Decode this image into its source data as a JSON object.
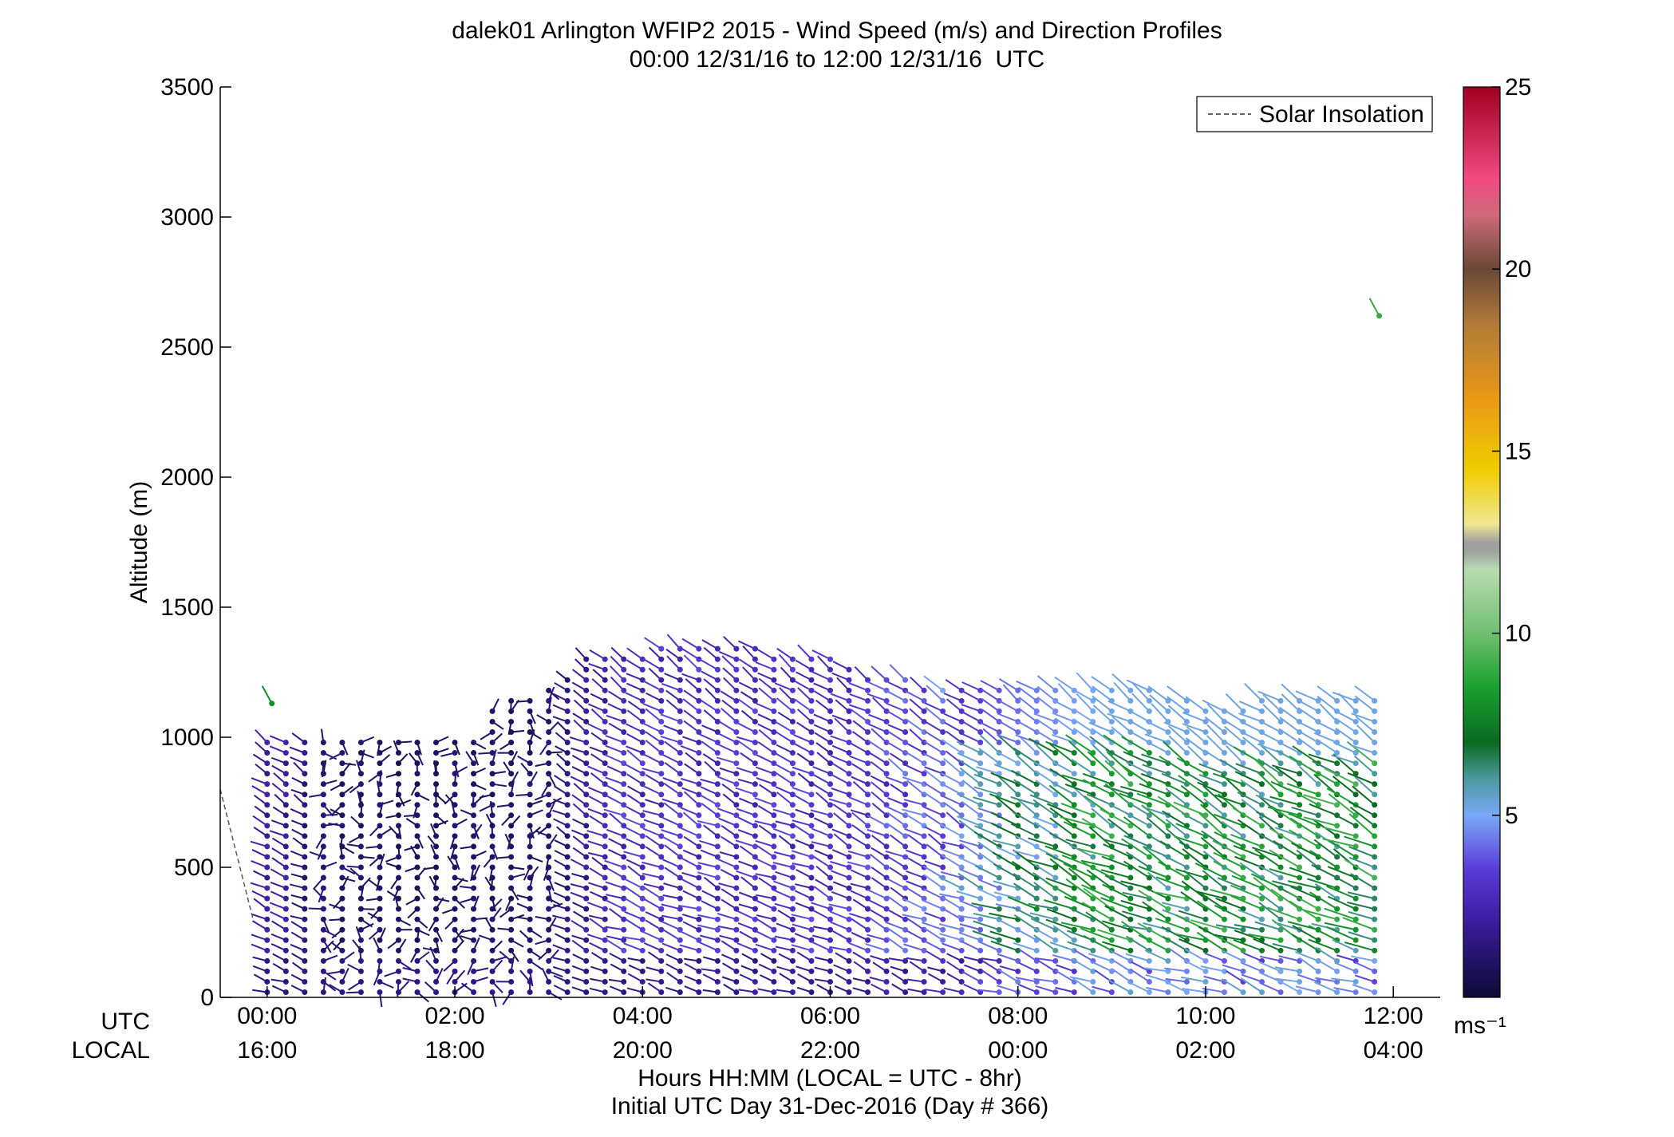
{
  "title_line1": "dalek01 Arlington WFIP2 2015 - Wind Speed (m/s) and Direction Profiles",
  "title_line2": "00:00 12/31/16 to 12:00 12/31/16  UTC",
  "legend": {
    "label": "Solar Insolation",
    "placement": "top-right"
  },
  "colorbar": {
    "min": 0,
    "max": 25,
    "ticks": [
      "5",
      "10",
      "15",
      "20",
      "25"
    ],
    "unit_label": "ms⁻¹"
  },
  "axes": {
    "ylabel": "Altitude (m)",
    "yticks": [
      "0",
      "500",
      "1000",
      "1500",
      "2000",
      "2500",
      "3000",
      "3500"
    ],
    "row_label_utc": "UTC",
    "row_label_local": "LOCAL",
    "xticks_utc": [
      "00:00",
      "02:00",
      "04:00",
      "06:00",
      "08:00",
      "10:00",
      "12:00"
    ],
    "xticks_local": [
      "16:00",
      "18:00",
      "20:00",
      "22:00",
      "00:00",
      "02:00",
      "04:00"
    ],
    "xlabel_line1": "Hours HH:MM  (LOCAL = UTC - 8hr)",
    "xlabel_line2": "Initial UTC Day 31-Dec-2016 (Day # 366)"
  },
  "chart_data": {
    "type": "scatter",
    "title": "dalek01 Arlington WFIP2 2015 - Wind Speed (m/s) and Direction Profiles",
    "subtitle": "00:00 12/31/16 to 12:00 12/31/16  UTC",
    "xlabel": "Hours HH:MM  (LOCAL = UTC - 8hr)",
    "ylabel": "Altitude (m)",
    "xlim": [
      -0.5,
      12.5
    ],
    "ylim": [
      0,
      3500
    ],
    "grid": false,
    "colorbar_range_ms": [
      0,
      25
    ],
    "solar_insolation_x": [
      -0.5,
      -0.15
    ],
    "solar_insolation_y": [
      800,
      300
    ],
    "profile_times_utc": [
      0,
      0.2,
      0.4,
      0.6,
      0.8,
      1.0,
      1.2,
      1.4,
      1.6,
      1.8,
      2.0,
      2.2,
      2.4,
      2.6,
      2.8,
      3.0,
      3.2,
      3.4,
      3.6,
      3.8,
      4.0,
      4.2,
      4.4,
      4.6,
      4.8,
      5.0,
      5.2,
      5.4,
      5.6,
      5.8,
      6.0,
      6.2,
      6.4,
      6.6,
      6.8,
      7.0,
      7.2,
      7.4,
      7.6,
      7.8,
      8.0,
      8.2,
      8.4,
      8.6,
      8.8,
      9.0,
      9.2,
      9.4,
      9.6,
      9.8,
      10.0,
      10.2,
      10.4,
      10.6,
      10.8,
      11.0,
      11.2,
      11.4,
      11.6,
      11.8
    ],
    "profile_top_altitude_m": [
      1000,
      1000,
      1000,
      1000,
      1000,
      1000,
      1000,
      1000,
      1000,
      1000,
      1000,
      1000,
      1100,
      1150,
      1150,
      1200,
      1250,
      1300,
      1300,
      1300,
      1300,
      1350,
      1350,
      1350,
      1350,
      1350,
      1350,
      1300,
      1300,
      1300,
      1300,
      1280,
      1250,
      1250,
      1220,
      1200,
      1200,
      1200,
      1200,
      1200,
      1200,
      1200,
      1200,
      1200,
      1200,
      1200,
      1200,
      1200,
      1150,
      1150,
      1100,
      1100,
      1100,
      1150,
      1150,
      1150,
      1150,
      1150,
      1150,
      1150
    ],
    "profile_mean_speed_ms": [
      2,
      2,
      1.5,
      1.2,
      1,
      1,
      1,
      0.8,
      0.8,
      0.8,
      1,
      1,
      1,
      1,
      1,
      1.2,
      1.5,
      2,
      2.5,
      3,
      3,
      3,
      3,
      3,
      3,
      3,
      3,
      3,
      3,
      3,
      3,
      3,
      3.2,
      3.4,
      3.6,
      3.8,
      4,
      4.5,
      5,
      5.5,
      6,
      6.3,
      6.6,
      6.9,
      7.2,
      7.5,
      7.5,
      7.5,
      7.5,
      7.5,
      7.5,
      7.5,
      7.5,
      7.5,
      7.5,
      7.5,
      7.5,
      7.5,
      7.5,
      7.5
    ],
    "isolated_points": [
      {
        "x": 0.05,
        "y": 1130,
        "speed_ms": 8
      },
      {
        "x": 11.85,
        "y": 2620,
        "speed_ms": 9
      }
    ]
  }
}
